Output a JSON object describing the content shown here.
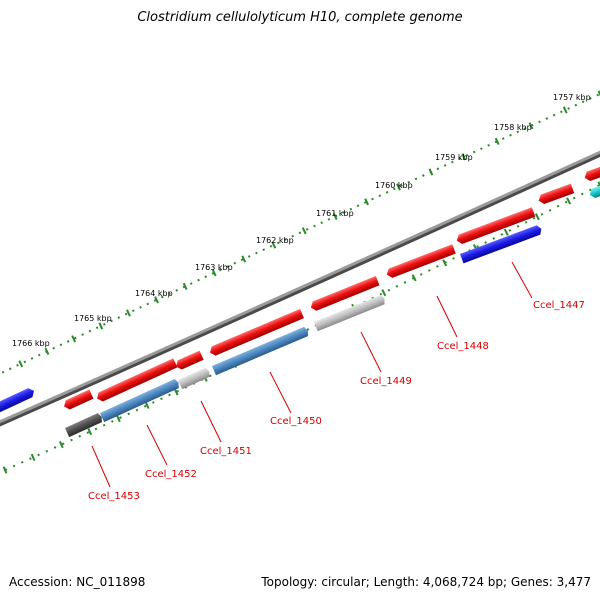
{
  "title": "Clostridium cellulolyticum H10, complete genome",
  "footer": {
    "accession": "Accession: NC_011898",
    "info": "Topology: circular; Length: 4,068,724 bp; Genes: 3,477"
  },
  "colors": {
    "forward_gene": "#ee1111",
    "reverse_gene": "#1a1ae6",
    "steel_gene": "#4a86bf",
    "grey_gene": "#bdbdbd",
    "dark_gene": "#4f4f4f",
    "cyan_gene": "#18c8c8",
    "backbone": "#7a7a7a",
    "ticks": "#2a8a2a",
    "label": "#d40000"
  },
  "scale_labels": [
    "1757 kbp",
    "1758 kbp",
    "1759 kbp",
    "1760 kbp",
    "1761 kbp",
    "1762 kbp",
    "1763 kbp",
    "1764 kbp",
    "1765 kbp",
    "1766 kbp"
  ],
  "gene_labels": [
    "Ccel_1447",
    "Ccel_1448",
    "Ccel_1449",
    "Ccel_1450",
    "Ccel_1451",
    "Ccel_1452",
    "Ccel_1453"
  ]
}
